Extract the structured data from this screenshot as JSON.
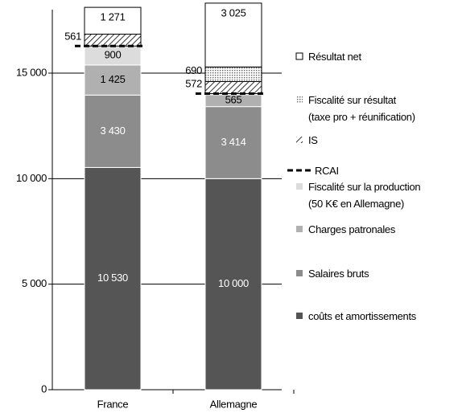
{
  "chart_data": {
    "type": "stacked_bar",
    "categories": [
      "France",
      "Allemagne"
    ],
    "series": [
      {
        "name": "coûts et amortissements",
        "color": "#555555",
        "values": [
          10530,
          10000
        ],
        "value_labels": [
          "10 530",
          "10 000"
        ]
      },
      {
        "name": "Salaires bruts",
        "color": "#8c8c8c",
        "values": [
          3430,
          3414
        ],
        "value_labels": [
          "3 430",
          "3 414"
        ]
      },
      {
        "name": "Charges patronales",
        "color": "#b0b0b0",
        "values": [
          1425,
          565
        ],
        "value_labels": [
          "1 425",
          "565"
        ]
      },
      {
        "name": "Fiscalité sur la production\n(50 K€ en Allemagne)",
        "color": "#dcdcdc",
        "values": [
          900,
          50
        ],
        "value_labels": [
          "900",
          null
        ]
      },
      {
        "name": "IS",
        "color": "#ffffff",
        "pattern": "hatch",
        "values": [
          561,
          572
        ],
        "value_labels": [
          "561",
          "572"
        ]
      },
      {
        "name": "Fiscalité sur résultat\n(taxe pro + réunification)",
        "color": "#ffffff",
        "pattern": "dots",
        "values": [
          0,
          690
        ],
        "value_labels": [
          null,
          "690"
        ]
      },
      {
        "name": "Résultat net",
        "color": "#ffffff",
        "values": [
          1271,
          3025
        ],
        "value_labels": [
          "1 271",
          "3 025"
        ]
      }
    ],
    "rcai_label": "RCAI",
    "ylim": [
      0,
      18000
    ],
    "yticks": [
      0,
      {
        "value": 5000,
        "label": "5 000"
      },
      {
        "value": 10000,
        "label": "10 000"
      },
      {
        "value": 15000,
        "label": "15 000"
      }
    ],
    "grid": true
  }
}
